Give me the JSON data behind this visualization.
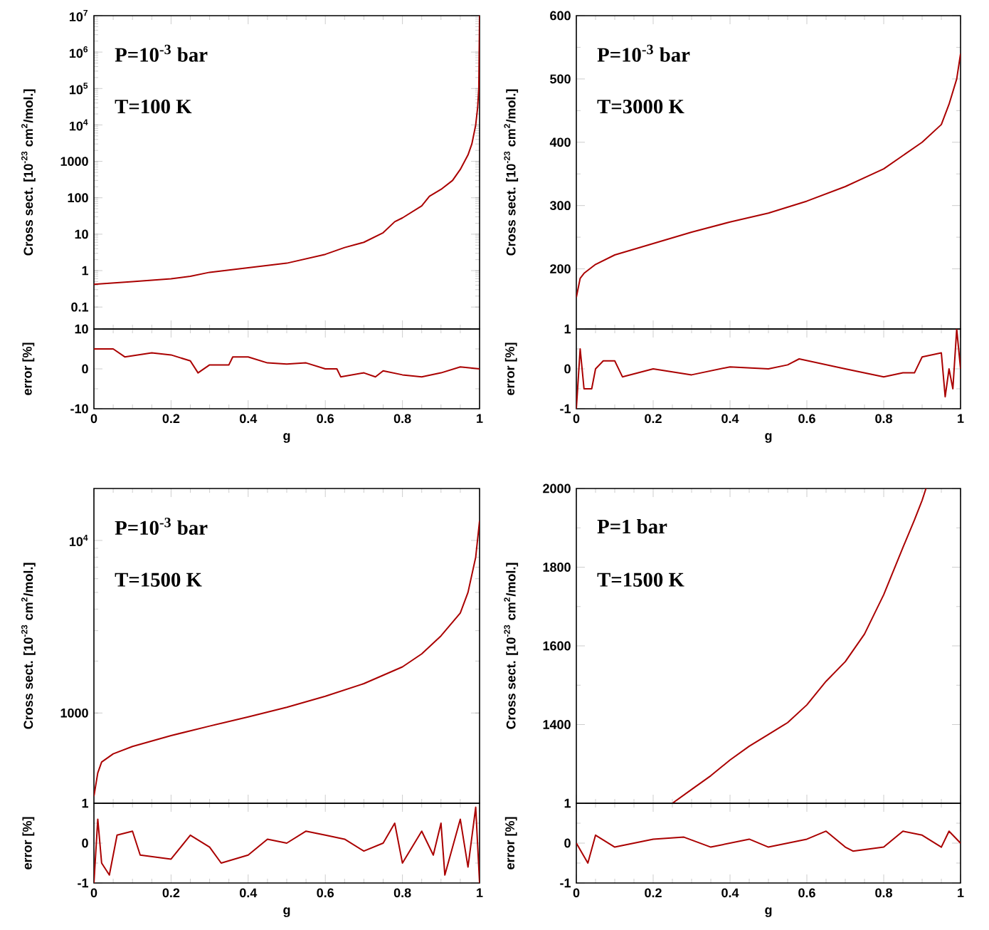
{
  "chart_data": [
    {
      "type": "line",
      "ylabel": "Cross sect. [10$^{-23}$ cm$^{2}$/mol.]",
      "annotations": [
        "P=10$^{-3}$ bar",
        "T=100 K"
      ],
      "color": "#aa0000",
      "log": "y",
      "tick_labels": "y",
      "xlim": [
        0,
        1
      ],
      "xticks": [
        0,
        0.2,
        0.4,
        0.6,
        0.8,
        1
      ],
      "ylim": [
        0.025,
        10000000
      ],
      "yticks": [
        0.1,
        1,
        10,
        100,
        1000,
        {
          "value": 10000,
          "label": "10$^{4}$"
        },
        {
          "value": 100000,
          "label": "10$^{5}$"
        },
        {
          "value": 1000000,
          "label": "10$^{6}$"
        },
        {
          "value": 10000000,
          "label": "10$^{7}$"
        }
      ],
      "x": [
        0,
        0.1,
        0.2,
        0.25,
        0.3,
        0.4,
        0.5,
        0.6,
        0.65,
        0.7,
        0.75,
        0.78,
        0.8,
        0.85,
        0.87,
        0.9,
        0.93,
        0.95,
        0.97,
        0.98,
        0.99,
        0.995,
        0.998,
        1
      ],
      "values": [
        0.42,
        0.5,
        0.6,
        0.7,
        0.9,
        1.2,
        1.6,
        2.8,
        4.3,
        6,
        11,
        22,
        28,
        60,
        110,
        170,
        300,
        600,
        1500,
        3000,
        10000,
        30000,
        100000,
        10000000
      ]
    },
    {
      "type": "line",
      "ylabel": "error [%]",
      "xlabel": "g",
      "color": "#aa0000",
      "xlim": [
        0,
        1
      ],
      "xticks": [
        0,
        0.2,
        0.4,
        0.6,
        0.8,
        1
      ],
      "ylim": [
        -10,
        10
      ],
      "yticks": [
        -10,
        0,
        10
      ],
      "x": [
        0,
        0.05,
        0.08,
        0.15,
        0.2,
        0.25,
        0.27,
        0.3,
        0.35,
        0.36,
        0.4,
        0.45,
        0.5,
        0.55,
        0.6,
        0.63,
        0.64,
        0.7,
        0.73,
        0.75,
        0.8,
        0.85,
        0.9,
        0.95,
        1
      ],
      "values": [
        5,
        5,
        3,
        4,
        3.5,
        2,
        -1,
        1,
        1,
        3,
        3,
        1.5,
        1.2,
        1.5,
        0,
        0,
        -2,
        -1,
        -2,
        -0.5,
        -1.5,
        -2,
        -1,
        0.5,
        0
      ]
    },
    {
      "type": "line",
      "ylabel": "Cross sect. [10$^{-23}$ cm$^{2}$/mol.]",
      "annotations": [
        "P=10$^{-3}$ bar",
        "T=3000 K"
      ],
      "color": "#aa0000",
      "tick_labels": "y",
      "xlim": [
        0,
        1
      ],
      "xticks": [
        0,
        0.2,
        0.4,
        0.6,
        0.8,
        1
      ],
      "ylim": [
        105,
        600
      ],
      "yticks": [
        200,
        300,
        400,
        500,
        600
      ],
      "x": [
        0,
        0.01,
        0.02,
        0.05,
        0.1,
        0.2,
        0.3,
        0.4,
        0.5,
        0.6,
        0.7,
        0.8,
        0.9,
        0.95,
        0.97,
        0.99,
        1
      ],
      "values": [
        155,
        185,
        193,
        207,
        222,
        240,
        258,
        274,
        288,
        307,
        330,
        358,
        400,
        428,
        460,
        500,
        540
      ]
    },
    {
      "type": "line",
      "ylabel": "error [%]",
      "xlabel": "g",
      "color": "#aa0000",
      "xlim": [
        0,
        1
      ],
      "xticks": [
        0,
        0.2,
        0.4,
        0.6,
        0.8,
        1
      ],
      "ylim": [
        -1,
        1
      ],
      "yticks": [
        -1,
        0,
        1
      ],
      "x": [
        0,
        0.01,
        0.02,
        0.04,
        0.05,
        0.07,
        0.1,
        0.12,
        0.2,
        0.3,
        0.4,
        0.5,
        0.55,
        0.58,
        0.7,
        0.75,
        0.8,
        0.85,
        0.88,
        0.9,
        0.95,
        0.96,
        0.97,
        0.98,
        0.99,
        1
      ],
      "values": [
        -1,
        0.5,
        -0.5,
        -0.5,
        0,
        0.2,
        0.2,
        -0.2,
        0,
        -0.15,
        0.05,
        0,
        0.1,
        0.25,
        0,
        -0.1,
        -0.2,
        -0.1,
        -0.1,
        0.3,
        0.4,
        -0.7,
        0,
        -0.5,
        1,
        0
      ]
    },
    {
      "type": "line",
      "ylabel": "Cross sect. [10$^{-23}$ cm$^{2}$/mol.]",
      "annotations": [
        "P=10$^{-3}$ bar",
        "T=1500 K"
      ],
      "color": "#aa0000",
      "log": "y",
      "tick_labels": "y",
      "xlim": [
        0,
        1
      ],
      "xticks": [
        0,
        0.2,
        0.4,
        0.6,
        0.8,
        1
      ],
      "ylim": [
        300,
        20000
      ],
      "yticks": [
        1000,
        {
          "value": 10000,
          "label": "10$^{4}$"
        }
      ],
      "x": [
        0,
        0.01,
        0.02,
        0.05,
        0.1,
        0.2,
        0.3,
        0.4,
        0.5,
        0.6,
        0.7,
        0.8,
        0.85,
        0.9,
        0.95,
        0.97,
        0.99,
        1
      ],
      "values": [
        330,
        450,
        520,
        580,
        640,
        740,
        840,
        950,
        1080,
        1250,
        1480,
        1850,
        2200,
        2800,
        3800,
        5000,
        8000,
        13000
      ]
    },
    {
      "type": "line",
      "ylabel": "error [%]",
      "xlabel": "g",
      "color": "#aa0000",
      "xlim": [
        0,
        1
      ],
      "xticks": [
        0,
        0.2,
        0.4,
        0.6,
        0.8,
        1
      ],
      "ylim": [
        -1,
        1
      ],
      "yticks": [
        -1,
        0,
        1
      ],
      "x": [
        0,
        0.01,
        0.02,
        0.04,
        0.06,
        0.1,
        0.12,
        0.2,
        0.25,
        0.3,
        0.33,
        0.4,
        0.45,
        0.5,
        0.55,
        0.6,
        0.65,
        0.7,
        0.75,
        0.78,
        0.8,
        0.85,
        0.88,
        0.9,
        0.91,
        0.95,
        0.97,
        0.99,
        1
      ],
      "values": [
        -1,
        0.6,
        -0.5,
        -0.8,
        0.2,
        0.3,
        -0.3,
        -0.4,
        0.2,
        -0.1,
        -0.5,
        -0.3,
        0.1,
        0,
        0.3,
        0.2,
        0.1,
        -0.2,
        0,
        0.5,
        -0.5,
        0.3,
        -0.3,
        0.5,
        -0.8,
        0.6,
        -0.6,
        0.9,
        -1
      ]
    },
    {
      "type": "line",
      "ylabel": "Cross sect. [10$^{-23}$ cm$^{2}$/mol.]",
      "annotations": [
        "P=1 bar",
        "T=1500 K"
      ],
      "color": "#aa0000",
      "tick_labels": "y",
      "xlim": [
        0,
        1
      ],
      "xticks": [
        0,
        0.2,
        0.4,
        0.6,
        0.8,
        1
      ],
      "ylim": [
        1200,
        2000
      ],
      "yticks": [
        {
          "value": 1400,
          "label": "1400"
        },
        {
          "value": 1600,
          "label": "1600"
        },
        {
          "value": 1800,
          "label": "1800"
        },
        {
          "value": 2000,
          "label": "2000"
        }
      ],
      "x": [
        0.25,
        0.3,
        0.35,
        0.4,
        0.45,
        0.5,
        0.55,
        0.6,
        0.65,
        0.7,
        0.75,
        0.8,
        0.85,
        0.88,
        0.9,
        0.91
      ],
      "values": [
        1200,
        1235,
        1270,
        1310,
        1345,
        1375,
        1405,
        1450,
        1510,
        1560,
        1630,
        1730,
        1850,
        1920,
        1970,
        2000
      ]
    },
    {
      "type": "line",
      "ylabel": "error [%]",
      "xlabel": "g",
      "color": "#aa0000",
      "xlim": [
        0,
        1
      ],
      "xticks": [
        0,
        0.2,
        0.4,
        0.6,
        0.8,
        1
      ],
      "ylim": [
        -1,
        1
      ],
      "yticks": [
        -1,
        0,
        1
      ],
      "x": [
        0,
        0.03,
        0.05,
        0.1,
        0.2,
        0.28,
        0.35,
        0.45,
        0.5,
        0.6,
        0.65,
        0.7,
        0.72,
        0.8,
        0.85,
        0.9,
        0.95,
        0.97,
        1
      ],
      "values": [
        0,
        -0.5,
        0.2,
        -0.1,
        0.1,
        0.15,
        -0.1,
        0.1,
        -0.1,
        0.1,
        0.3,
        -0.1,
        -0.2,
        -0.1,
        0.3,
        0.2,
        -0.1,
        0.3,
        0
      ]
    }
  ]
}
